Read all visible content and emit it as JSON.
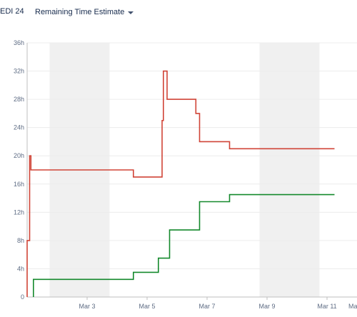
{
  "header": {
    "sprint_name": "EDI 24",
    "metric_label": "Remaining Time Estimate",
    "metric_icon": "caret-down-icon"
  },
  "chart_data": {
    "type": "line",
    "title": "",
    "xlabel": "",
    "ylabel": "",
    "grid": true,
    "ylim": [
      0,
      36
    ],
    "xlim": [
      "2025-03-01",
      "2025-03-12"
    ],
    "yticks": [
      "0",
      "4h",
      "8h",
      "12h",
      "16h",
      "20h",
      "24h",
      "28h",
      "32h",
      "36h"
    ],
    "xticks": [
      "Mar 3",
      "Mar 5",
      "Mar 7",
      "Mar 9",
      "Mar 11",
      "Mar"
    ],
    "non_working_days": [
      [
        "2025-03-01T18:00",
        "2025-03-03T18:00"
      ],
      [
        "2025-03-08T18:00",
        "2025-03-10T18:00"
      ]
    ],
    "colors": {
      "remaining": "#d04437",
      "completed": "#14892c",
      "non_working": "#f0f0f0"
    },
    "series": [
      {
        "key": "remaining",
        "color": "#d04437",
        "points": [
          [
            "2025-03-01T00:00",
            0
          ],
          [
            "2025-03-01T00:00",
            8
          ],
          [
            "2025-03-01T02:00",
            8
          ],
          [
            "2025-03-01T02:00",
            20
          ],
          [
            "2025-03-01T03:00",
            20
          ],
          [
            "2025-03-01T03:00",
            18
          ],
          [
            "2025-03-04T13:00",
            18
          ],
          [
            "2025-03-04T13:00",
            17
          ],
          [
            "2025-03-05T12:00",
            17
          ],
          [
            "2025-03-05T12:00",
            25
          ],
          [
            "2025-03-05T13:00",
            25
          ],
          [
            "2025-03-05T13:00",
            32
          ],
          [
            "2025-03-05T16:00",
            32
          ],
          [
            "2025-03-05T16:00",
            28
          ],
          [
            "2025-03-06T15:00",
            28
          ],
          [
            "2025-03-06T15:00",
            26
          ],
          [
            "2025-03-06T18:00",
            26
          ],
          [
            "2025-03-06T18:00",
            22
          ],
          [
            "2025-03-07T18:00",
            22
          ],
          [
            "2025-03-07T18:00",
            21
          ],
          [
            "2025-03-11T06:00",
            21
          ]
        ]
      },
      {
        "key": "completed",
        "color": "#14892c",
        "points": [
          [
            "2025-03-01T05:00",
            0
          ],
          [
            "2025-03-01T05:00",
            2.5
          ],
          [
            "2025-03-04T13:00",
            2.5
          ],
          [
            "2025-03-04T13:00",
            3.5
          ],
          [
            "2025-03-05T09:00",
            3.5
          ],
          [
            "2025-03-05T09:00",
            5.5
          ],
          [
            "2025-03-05T18:00",
            5.5
          ],
          [
            "2025-03-05T18:00",
            9.5
          ],
          [
            "2025-03-06T18:00",
            9.5
          ],
          [
            "2025-03-06T18:00",
            13.5
          ],
          [
            "2025-03-07T18:00",
            13.5
          ],
          [
            "2025-03-07T18:00",
            14.5
          ],
          [
            "2025-03-11T06:00",
            14.5
          ]
        ]
      }
    ]
  }
}
